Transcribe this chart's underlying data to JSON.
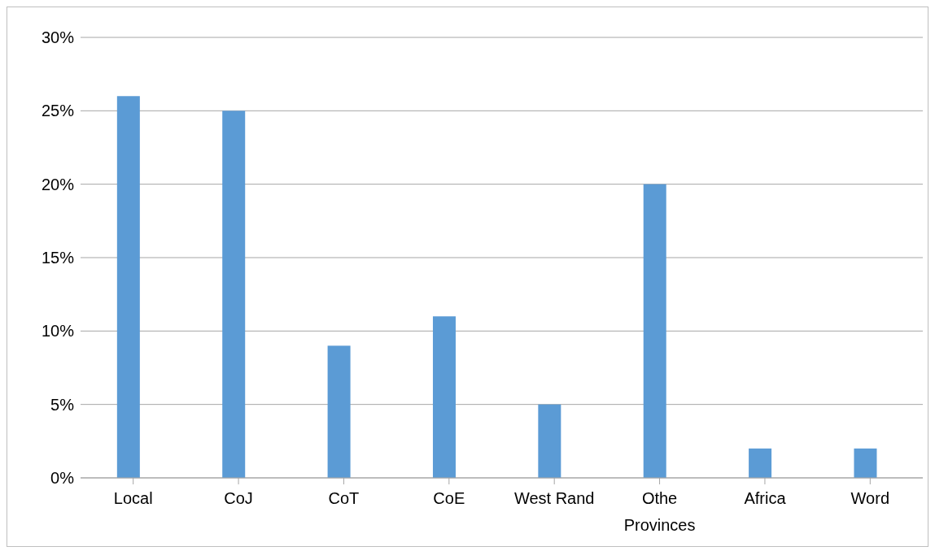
{
  "chart_data": {
    "type": "bar",
    "categories": [
      "Local",
      "CoJ",
      "CoT",
      "CoE",
      "West Rand",
      "Othe Provinces",
      "Africa",
      "Word"
    ],
    "values": [
      26,
      25,
      9,
      11,
      5,
      20,
      2,
      2
    ],
    "color": "#5b9bd5",
    "ylim": [
      0,
      30
    ],
    "yticks": [
      {
        "value": 0,
        "label": "0%"
      },
      {
        "value": 5,
        "label": "5%"
      },
      {
        "value": 10,
        "label": "10%"
      },
      {
        "value": 15,
        "label": "15%"
      },
      {
        "value": 20,
        "label": "20%"
      },
      {
        "value": 25,
        "label": "25%"
      },
      {
        "value": 30,
        "label": "30%"
      }
    ],
    "grid": "y"
  }
}
